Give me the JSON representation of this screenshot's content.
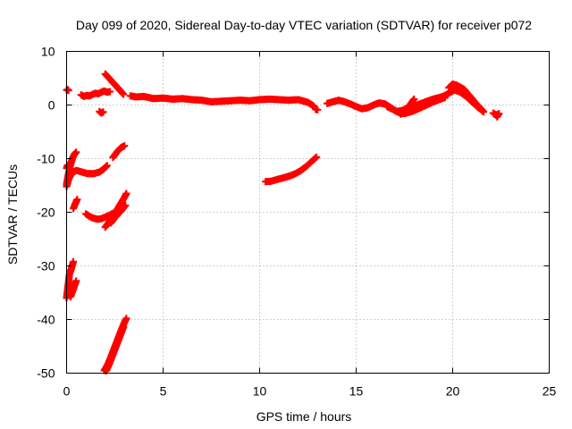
{
  "chart_data": {
    "type": "scatter",
    "title": "Day 099 of 2020, Sidereal Day-to-day VTEC variation (SDTVAR) for receiver p072",
    "xlabel": "GPS time / hours",
    "ylabel": "SDTVAR / TECUs",
    "xlim": [
      0,
      25
    ],
    "ylim": [
      -50,
      10
    ],
    "xticks": [
      0,
      5,
      10,
      15,
      20,
      25
    ],
    "yticks": [
      -50,
      -40,
      -30,
      -20,
      -10,
      0,
      10
    ],
    "grid": true,
    "marker": "+",
    "color": "#ff0000",
    "segments": [
      {
        "points": [
          [
            0.0,
            2.8
          ],
          [
            0.05,
            2.9
          ],
          [
            0.1,
            2.7
          ]
        ]
      },
      {
        "points": [
          [
            0.75,
            1.9
          ],
          [
            0.9,
            1.6
          ],
          [
            1.05,
            1.8
          ],
          [
            1.2,
            1.7
          ],
          [
            1.35,
            2.0
          ],
          [
            1.5,
            2.2
          ],
          [
            1.65,
            2.1
          ],
          [
            1.8,
            2.4
          ],
          [
            1.95,
            2.6
          ],
          [
            2.1,
            2.4
          ],
          [
            2.25,
            2.5
          ]
        ]
      },
      {
        "points": [
          [
            1.7,
            -1.2
          ],
          [
            1.8,
            -1.5
          ],
          [
            1.9,
            -1.3
          ]
        ]
      },
      {
        "points": [
          [
            2.0,
            5.8
          ],
          [
            2.2,
            5.0
          ],
          [
            2.4,
            4.2
          ],
          [
            2.6,
            3.4
          ],
          [
            2.8,
            2.6
          ],
          [
            2.95,
            2.0
          ]
        ]
      },
      {
        "points": [
          [
            3.3,
            1.7
          ],
          [
            3.6,
            1.5
          ],
          [
            4.0,
            1.6
          ],
          [
            4.5,
            1.2
          ],
          [
            5.0,
            1.3
          ],
          [
            5.5,
            1.1
          ],
          [
            6.0,
            1.2
          ],
          [
            6.5,
            1.0
          ],
          [
            7.0,
            0.9
          ],
          [
            7.5,
            0.6
          ],
          [
            8.0,
            0.7
          ],
          [
            8.5,
            0.8
          ],
          [
            9.0,
            0.9
          ],
          [
            9.5,
            0.8
          ],
          [
            10.0,
            1.0
          ],
          [
            10.5,
            1.1
          ],
          [
            11.0,
            1.0
          ],
          [
            11.5,
            0.9
          ],
          [
            12.0,
            1.0
          ],
          [
            12.5,
            0.5
          ],
          [
            12.8,
            -0.2
          ]
        ]
      },
      {
        "points": [
          [
            12.9,
            -0.8
          ],
          [
            13.0,
            -0.9
          ]
        ]
      },
      {
        "points": [
          [
            13.5,
            0.3
          ],
          [
            13.8,
            0.6
          ],
          [
            14.1,
            0.9
          ],
          [
            14.4,
            0.6
          ],
          [
            14.7,
            0.2
          ],
          [
            15.0,
            -0.3
          ],
          [
            15.3,
            -0.7
          ],
          [
            15.6,
            -0.5
          ],
          [
            15.9,
            0.0
          ],
          [
            16.2,
            0.4
          ],
          [
            16.5,
            0.2
          ],
          [
            16.8,
            -0.5
          ],
          [
            17.1,
            -1.2
          ],
          [
            17.4,
            -1.0
          ],
          [
            17.7,
            -0.4
          ],
          [
            18.0,
            -0.2
          ],
          [
            18.3,
            0.2
          ],
          [
            18.6,
            0.6
          ],
          [
            18.9,
            1.0
          ],
          [
            19.2,
            1.3
          ],
          [
            19.5,
            1.6
          ],
          [
            19.8,
            2.2
          ],
          [
            20.1,
            2.8
          ],
          [
            20.4,
            2.4
          ],
          [
            20.7,
            1.6
          ],
          [
            21.0,
            0.6
          ],
          [
            21.3,
            -0.4
          ],
          [
            21.6,
            -1.2
          ]
        ]
      },
      {
        "points": [
          [
            16.6,
            -0.3
          ],
          [
            16.9,
            -0.8
          ],
          [
            17.2,
            -1.4
          ],
          [
            17.5,
            -1.6
          ],
          [
            17.8,
            -1.3
          ],
          [
            18.1,
            -0.9
          ],
          [
            18.4,
            -0.4
          ],
          [
            18.7,
            0.1
          ],
          [
            19.0,
            0.6
          ],
          [
            19.3,
            1.0
          ],
          [
            19.6,
            1.4
          ]
        ]
      },
      {
        "points": [
          [
            17.3,
            -1.7
          ],
          [
            17.5,
            -1.2
          ],
          [
            17.7,
            -0.4
          ],
          [
            17.9,
            0.6
          ],
          [
            18.0,
            1.1
          ]
        ]
      },
      {
        "points": [
          [
            19.8,
            3.2
          ],
          [
            20.0,
            3.9
          ],
          [
            20.2,
            3.7
          ],
          [
            20.4,
            3.3
          ],
          [
            20.6,
            2.9
          ],
          [
            20.8,
            2.0
          ],
          [
            21.0,
            1.2
          ],
          [
            21.2,
            0.3
          ],
          [
            21.4,
            -0.5
          ],
          [
            21.6,
            -1.3
          ]
        ]
      },
      {
        "points": [
          [
            22.1,
            -1.5
          ],
          [
            22.25,
            -1.9
          ],
          [
            22.4,
            -1.6
          ],
          [
            22.3,
            -2.2
          ]
        ]
      },
      {
        "points": [
          [
            0.0,
            -14.8
          ],
          [
            0.1,
            -12.8
          ],
          [
            0.2,
            -11.2
          ],
          [
            0.3,
            -10.0
          ],
          [
            0.4,
            -9.2
          ],
          [
            0.5,
            -8.8
          ]
        ]
      },
      {
        "points": [
          [
            0.0,
            -15.2
          ],
          [
            0.1,
            -13.9
          ],
          [
            0.3,
            -12.6
          ],
          [
            0.5,
            -12.2
          ],
          [
            0.8,
            -12.5
          ],
          [
            1.1,
            -12.8
          ],
          [
            1.4,
            -12.8
          ],
          [
            1.7,
            -12.5
          ],
          [
            1.9,
            -12.0
          ],
          [
            2.1,
            -11.3
          ]
        ]
      },
      {
        "points": [
          [
            2.4,
            -9.8
          ],
          [
            2.6,
            -8.8
          ],
          [
            2.8,
            -8.0
          ],
          [
            3.0,
            -7.6
          ]
        ]
      },
      {
        "points": [
          [
            0.0,
            -11.8
          ],
          [
            0.05,
            -11.2
          ]
        ]
      },
      {
        "points": [
          [
            0.35,
            -19.3
          ],
          [
            0.45,
            -18.4
          ],
          [
            0.55,
            -17.6
          ]
        ]
      },
      {
        "points": [
          [
            1.0,
            -20.3
          ],
          [
            1.2,
            -20.8
          ],
          [
            1.4,
            -21.1
          ],
          [
            1.6,
            -21.3
          ],
          [
            1.8,
            -21.2
          ],
          [
            2.0,
            -20.9
          ],
          [
            2.2,
            -20.6
          ],
          [
            2.4,
            -20.2
          ]
        ]
      },
      {
        "points": [
          [
            2.0,
            -22.8
          ],
          [
            2.2,
            -21.8
          ],
          [
            2.4,
            -20.7
          ],
          [
            2.6,
            -19.6
          ],
          [
            2.8,
            -18.4
          ],
          [
            3.0,
            -17.2
          ],
          [
            3.1,
            -16.5
          ]
        ]
      },
      {
        "points": [
          [
            2.3,
            -22.0
          ],
          [
            2.5,
            -21.0
          ],
          [
            2.7,
            -20.2
          ],
          [
            2.9,
            -19.4
          ],
          [
            3.05,
            -18.7
          ]
        ]
      },
      {
        "points": [
          [
            0.0,
            -36.0
          ],
          [
            0.05,
            -34.5
          ],
          [
            0.1,
            -33.0
          ],
          [
            0.15,
            -31.5
          ],
          [
            0.25,
            -30.5
          ],
          [
            0.35,
            -29.2
          ]
        ]
      },
      {
        "points": [
          [
            0.2,
            -35.8
          ],
          [
            0.3,
            -34.8
          ],
          [
            0.4,
            -33.8
          ],
          [
            0.5,
            -32.8
          ]
        ]
      },
      {
        "points": [
          [
            1.95,
            -49.5
          ],
          [
            2.1,
            -48.6
          ],
          [
            2.25,
            -47.4
          ],
          [
            2.4,
            -46.0
          ],
          [
            2.55,
            -44.6
          ],
          [
            2.7,
            -43.2
          ],
          [
            2.85,
            -41.8
          ],
          [
            3.0,
            -40.5
          ],
          [
            3.1,
            -39.8
          ]
        ]
      },
      {
        "points": [
          [
            2.05,
            -49.6
          ],
          [
            2.2,
            -48.4
          ],
          [
            2.35,
            -47.0
          ],
          [
            2.5,
            -45.6
          ],
          [
            2.65,
            -44.2
          ],
          [
            2.8,
            -42.8
          ],
          [
            2.95,
            -41.4
          ]
        ]
      },
      {
        "points": [
          [
            10.3,
            -14.3
          ],
          [
            10.6,
            -14.2
          ],
          [
            10.9,
            -13.9
          ],
          [
            11.2,
            -13.6
          ],
          [
            11.5,
            -13.3
          ],
          [
            11.8,
            -12.9
          ],
          [
            12.1,
            -12.3
          ],
          [
            12.4,
            -11.5
          ],
          [
            12.7,
            -10.5
          ],
          [
            12.95,
            -9.7
          ]
        ]
      }
    ]
  }
}
